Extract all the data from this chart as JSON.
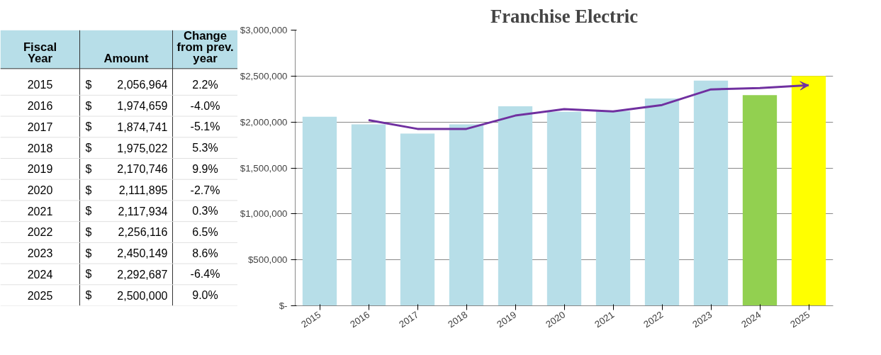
{
  "chart_data": {
    "type": "bar",
    "title": "Franchise Electric",
    "categories": [
      "2015",
      "2016",
      "2017",
      "2018",
      "2019",
      "2020",
      "2021",
      "2022",
      "2023",
      "2024",
      "2025"
    ],
    "values": [
      2056964,
      1974659,
      1874741,
      1975022,
      2170746,
      2111895,
      2117934,
      2256116,
      2450149,
      2292687,
      2500000
    ],
    "colors": [
      "#b7dee8",
      "#b7dee8",
      "#b7dee8",
      "#b7dee8",
      "#b7dee8",
      "#b7dee8",
      "#b7dee8",
      "#b7dee8",
      "#b7dee8",
      "#92d050",
      "#ffff00"
    ],
    "value_labels": [
      "$ 2,056,964",
      "$ 1,974,659",
      "$ 1,874,741",
      "$ 1,975,022",
      "$ 2,170,746",
      "$ 2,111,895",
      "$ 2,117,934",
      "$ 2,256,116",
      "$ 2,450,149",
      "$ 2,292,687",
      "$ 2,500,000"
    ],
    "series": [
      {
        "type": "line",
        "color": "#7030a0",
        "values": [
          null,
          2020000,
          1925000,
          1925000,
          2070000,
          2140000,
          2115000,
          2185000,
          2355000,
          2370000,
          2400000
        ]
      }
    ],
    "annotations": [
      "Fiscal Year",
      "Amount",
      "Change from prev. year",
      "2.2%",
      "-4.0%",
      "-5.1%",
      "5.3%",
      "9.9%",
      "-2.7%",
      "0.3%",
      "6.5%",
      "8.6%",
      "-6.4%",
      "9.0%"
    ],
    "ylim": [
      0,
      3000000
    ],
    "yticks": [
      {
        "value": 0,
        "label": "$-"
      },
      {
        "value": 500000,
        "label": "$500,000"
      },
      {
        "value": 1000000,
        "label": "$1,000,000"
      },
      {
        "value": 1500000,
        "label": "$1,500,000"
      },
      {
        "value": 2000000,
        "label": "$2,000,000"
      },
      {
        "value": 2500000,
        "label": "$2,500,000"
      },
      {
        "value": 3000000,
        "label": "$3,000,000"
      }
    ],
    "grid": "y"
  }
}
